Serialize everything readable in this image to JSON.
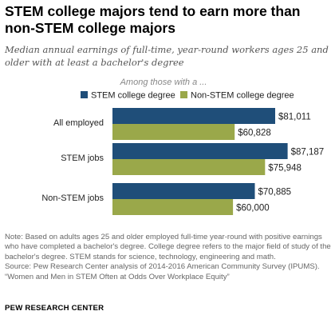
{
  "title": "STEM college majors tend to earn more than non-STEM college majors",
  "subtitle": "Median annual earnings of full-time, year-round workers ages 25 and older with at least a bachelor's degree",
  "note": "Note: Based on adults ages 25 and older employed full-time year-round with positive earnings who have completed a bachelor's degree. College degree refers to the major field of study of the bachelor's degree. STEM stands for science, technology, engineering and math.",
  "source": "Source: Pew Research Center analysis of 2014-2016 American Community Survey (IPUMS). “Women and Men in STEM Often at Odds Over Workplace Equity”",
  "brand": "PEW RESEARCH CENTER",
  "chart_data": {
    "type": "bar",
    "orientation": "horizontal",
    "legend_title": "Among those with a ...",
    "legend_placement": "top",
    "categories": [
      "All employed",
      "STEM jobs",
      "Non-STEM jobs"
    ],
    "series": [
      {
        "name": "STEM college degree",
        "color": "#1f4e79",
        "values": [
          81011,
          87187,
          70885
        ],
        "labels": [
          "$81,011",
          "$87,187",
          "$70,885"
        ]
      },
      {
        "name": "Non-STEM college degree",
        "color": "#9aa84a",
        "values": [
          60828,
          75948,
          60000
        ],
        "labels": [
          "$60,828",
          "$75,948",
          "$60,000"
        ]
      }
    ],
    "xlim": [
      0,
      100000
    ],
    "grid": false
  }
}
